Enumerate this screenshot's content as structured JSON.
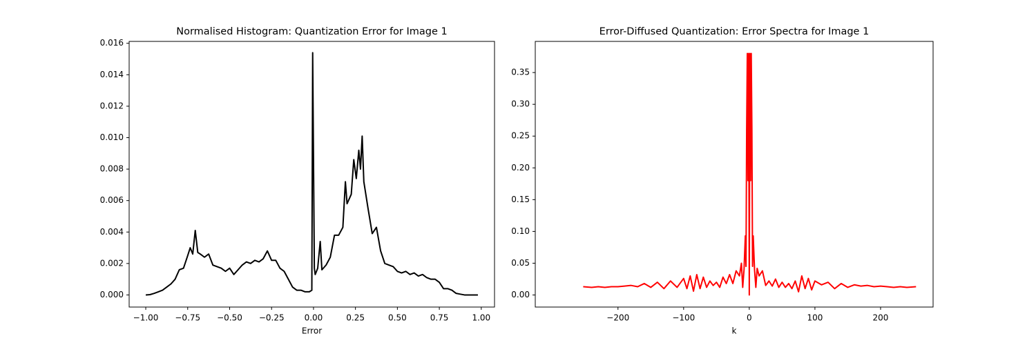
{
  "chart_data": [
    {
      "type": "line",
      "title": "Normalised Histogram: Quantization Error for Image 1",
      "xlabel": "Error",
      "color": "#000000",
      "x": [
        -1.0,
        -0.975,
        -0.95,
        -0.925,
        -0.9,
        -0.875,
        -0.85,
        -0.825,
        -0.8,
        -0.775,
        -0.75,
        -0.735,
        -0.72,
        -0.705,
        -0.69,
        -0.675,
        -0.65,
        -0.625,
        -0.6,
        -0.575,
        -0.55,
        -0.525,
        -0.5,
        -0.475,
        -0.45,
        -0.425,
        -0.4,
        -0.375,
        -0.35,
        -0.325,
        -0.3,
        -0.275,
        -0.25,
        -0.225,
        -0.2,
        -0.175,
        -0.15,
        -0.125,
        -0.1,
        -0.075,
        -0.05,
        -0.025,
        -0.01,
        -0.005,
        0.005,
        0.01,
        0.025,
        0.04,
        0.05,
        0.075,
        0.1,
        0.125,
        0.15,
        0.175,
        0.19,
        0.2,
        0.225,
        0.24,
        0.255,
        0.27,
        0.28,
        0.29,
        0.3,
        0.325,
        0.35,
        0.375,
        0.4,
        0.425,
        0.45,
        0.475,
        0.5,
        0.525,
        0.55,
        0.575,
        0.6,
        0.625,
        0.65,
        0.675,
        0.7,
        0.725,
        0.75,
        0.775,
        0.8,
        0.825,
        0.85,
        0.875,
        0.9,
        0.95,
        0.98
      ],
      "values": [
        0.0,
        2e-05,
        0.0001,
        0.0002,
        0.0003,
        0.0005,
        0.0007,
        0.001,
        0.0016,
        0.0017,
        0.0025,
        0.003,
        0.0026,
        0.0041,
        0.0027,
        0.0026,
        0.0024,
        0.0026,
        0.0019,
        0.0018,
        0.0017,
        0.0015,
        0.0017,
        0.0013,
        0.0016,
        0.0019,
        0.0021,
        0.002,
        0.0022,
        0.0021,
        0.0023,
        0.0028,
        0.0022,
        0.0022,
        0.0017,
        0.0015,
        0.001,
        0.0005,
        0.0003,
        0.0003,
        0.0002,
        0.0002,
        0.0003,
        0.0154,
        0.0017,
        0.0013,
        0.0017,
        0.0034,
        0.0016,
        0.0019,
        0.0024,
        0.0038,
        0.0038,
        0.0043,
        0.0072,
        0.0058,
        0.0064,
        0.0086,
        0.0074,
        0.0092,
        0.008,
        0.0101,
        0.0072,
        0.0055,
        0.0039,
        0.0043,
        0.0028,
        0.002,
        0.0019,
        0.0018,
        0.0015,
        0.0014,
        0.0015,
        0.0013,
        0.0014,
        0.0012,
        0.0013,
        0.0011,
        0.001,
        0.001,
        0.0008,
        0.0004,
        0.0004,
        0.0003,
        0.0001,
        5e-05,
        0.0,
        0.0,
        0.0
      ],
      "xlim": [
        -1.099,
        1.079
      ],
      "ylim": [
        -0.00077,
        0.01612
      ],
      "xticks": [
        {
          "value": -1,
          "label": "−1.00"
        },
        {
          "value": -0.75,
          "label": "−0.75"
        },
        {
          "value": -0.5,
          "label": "−0.50"
        },
        {
          "value": -0.25,
          "label": "−0.25"
        },
        {
          "value": 0,
          "label": "0.00"
        },
        0.25,
        {
          "value": 0.5,
          "label": "0.50"
        },
        0.75,
        {
          "value": 1,
          "label": "1.00"
        }
      ],
      "yticks": [
        {
          "value": 0,
          "label": "0.000"
        },
        {
          "value": 0.002,
          "label": "0.002"
        },
        {
          "value": 0.004,
          "label": "0.004"
        },
        {
          "value": 0.006,
          "label": "0.006"
        },
        {
          "value": 0.008,
          "label": "0.008"
        },
        {
          "value": 0.01,
          "label": "0.010"
        },
        {
          "value": 0.012,
          "label": "0.012"
        },
        {
          "value": 0.014,
          "label": "0.014"
        },
        {
          "value": 0.016,
          "label": "0.016"
        }
      ]
    },
    {
      "type": "line",
      "title": "Error-Diffused Quantization: Error Spectra for Image 1",
      "xlabel": "k",
      "color": "#ff0000",
      "x": [
        -253,
        -240,
        -230,
        -220,
        -210,
        -200,
        -190,
        -180,
        -170,
        -160,
        -150,
        -140,
        -130,
        -120,
        -110,
        -100,
        -95,
        -90,
        -85,
        -80,
        -75,
        -70,
        -65,
        -60,
        -55,
        -50,
        -45,
        -40,
        -35,
        -30,
        -25,
        -20,
        -15,
        -12,
        -10,
        -8,
        -6,
        -5,
        -4,
        -3,
        -2,
        -1,
        0,
        1,
        2,
        3,
        4,
        5,
        6,
        8,
        10,
        12,
        15,
        20,
        25,
        30,
        35,
        40,
        45,
        50,
        55,
        60,
        65,
        70,
        75,
        80,
        85,
        90,
        95,
        100,
        110,
        120,
        130,
        140,
        150,
        160,
        170,
        180,
        190,
        200,
        210,
        220,
        230,
        240,
        254
      ],
      "values": [
        0.013,
        0.012,
        0.013,
        0.012,
        0.013,
        0.013,
        0.014,
        0.015,
        0.013,
        0.018,
        0.012,
        0.02,
        0.01,
        0.022,
        0.012,
        0.026,
        0.01,
        0.03,
        0.006,
        0.032,
        0.01,
        0.028,
        0.012,
        0.022,
        0.015,
        0.02,
        0.012,
        0.028,
        0.018,
        0.032,
        0.018,
        0.038,
        0.03,
        0.05,
        0.012,
        0.04,
        0.093,
        0.045,
        0.26,
        0.38,
        0.18,
        0.38,
        0.0,
        0.38,
        0.18,
        0.38,
        0.26,
        0.045,
        0.093,
        0.04,
        0.012,
        0.042,
        0.03,
        0.038,
        0.015,
        0.022,
        0.014,
        0.025,
        0.012,
        0.02,
        0.012,
        0.018,
        0.01,
        0.022,
        0.005,
        0.03,
        0.01,
        0.026,
        0.008,
        0.022,
        0.016,
        0.02,
        0.01,
        0.018,
        0.012,
        0.016,
        0.014,
        0.015,
        0.013,
        0.014,
        0.013,
        0.012,
        0.013,
        0.012,
        0.013
      ],
      "xlim": [
        -326,
        280
      ],
      "ylim": [
        -0.019,
        0.399
      ],
      "xticks": [
        {
          "value": -200,
          "label": "−200"
        },
        {
          "value": -100,
          "label": "−100"
        },
        0,
        100,
        200
      ],
      "yticks": [
        {
          "value": 0,
          "label": "0.00"
        },
        0.05,
        {
          "value": 0.1,
          "label": "0.10"
        },
        0.15,
        {
          "value": 0.2,
          "label": "0.20"
        },
        0.25,
        {
          "value": 0.3,
          "label": "0.30"
        },
        0.35
      ]
    }
  ]
}
